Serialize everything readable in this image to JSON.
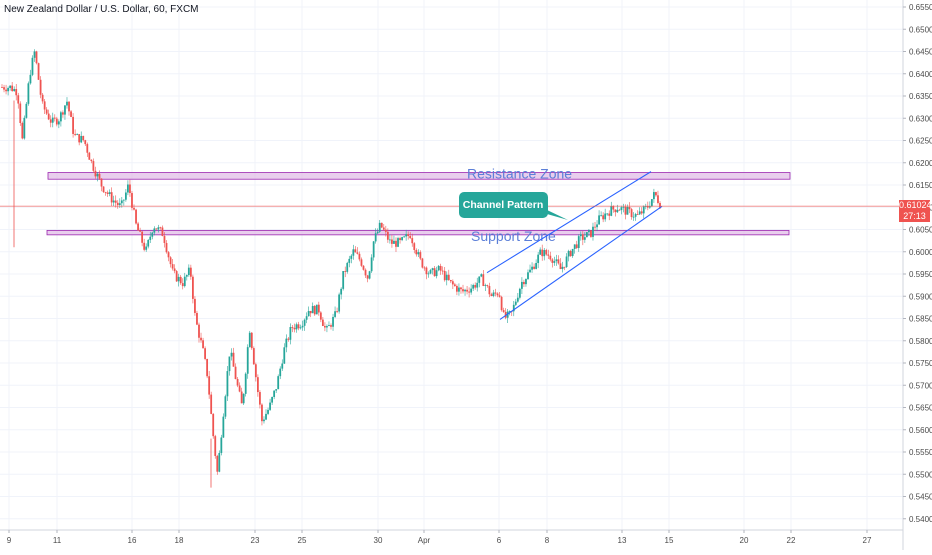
{
  "header": {
    "symbol_title": "New Zealand Dollar / U.S. Dollar, 60, FXCM"
  },
  "colors": {
    "up": "#26a69a",
    "down": "#ef5350",
    "zone_fill": "#e1bee7",
    "zone_border": "#9c27b0",
    "trend": "#2962ff",
    "callout": "#26a69a",
    "price_line": "#ef5350",
    "grid": "#f0f3fa",
    "axis_text": "#4a4a4a"
  },
  "chart_data": {
    "type": "candlestick",
    "series_name": "NZD/USD 60",
    "y_axis": {
      "range": [
        0.5375,
        0.656
      ],
      "ticks": [
        "0.65500",
        "0.65000",
        "0.64500",
        "0.64000",
        "0.63500",
        "0.63000",
        "0.62500",
        "0.62000",
        "0.61500",
        "0.61000",
        "0.60500",
        "0.60000",
        "0.59500",
        "0.59000",
        "0.58500",
        "0.58000",
        "0.57500",
        "0.57000",
        "0.56500",
        "0.56000",
        "0.55500",
        "0.55000",
        "0.54500",
        "0.54000"
      ]
    },
    "x_axis": {
      "ticks": [
        "9",
        "11",
        "16",
        "18",
        "23",
        "25",
        "30",
        "Apr",
        "6",
        "8",
        "13",
        "15",
        "20",
        "22",
        "27"
      ]
    },
    "last_price": "0.61024",
    "countdown": "27:13",
    "price_path": [
      [
        0.0,
        0.637
      ],
      [
        0.6,
        0.636
      ],
      [
        1.0,
        0.625
      ],
      [
        1.6,
        0.64
      ],
      [
        2.0,
        0.645
      ],
      [
        2.6,
        0.633
      ],
      [
        3.4,
        0.629
      ],
      [
        4.0,
        0.63
      ],
      [
        4.6,
        0.634
      ],
      [
        5.2,
        0.626
      ],
      [
        6.0,
        0.625
      ],
      [
        6.6,
        0.62
      ],
      [
        7.4,
        0.615
      ],
      [
        8.2,
        0.612
      ],
      [
        9.0,
        0.61
      ],
      [
        9.6,
        0.615
      ],
      [
        10.2,
        0.606
      ],
      [
        11.0,
        0.6
      ],
      [
        11.6,
        0.606
      ],
      [
        12.4,
        0.604
      ],
      [
        13.2,
        0.595
      ],
      [
        14.0,
        0.593
      ],
      [
        14.6,
        0.596
      ],
      [
        15.0,
        0.585
      ],
      [
        15.6,
        0.578
      ],
      [
        16.0,
        0.572
      ],
      [
        16.4,
        0.56
      ],
      [
        16.8,
        0.55
      ],
      [
        17.2,
        0.562
      ],
      [
        17.8,
        0.578
      ],
      [
        18.4,
        0.57
      ],
      [
        18.8,
        0.565
      ],
      [
        19.4,
        0.583
      ],
      [
        20.0,
        0.57
      ],
      [
        20.4,
        0.562
      ],
      [
        21.0,
        0.565
      ],
      [
        21.6,
        0.57
      ],
      [
        22.2,
        0.578
      ],
      [
        22.8,
        0.583
      ],
      [
        23.6,
        0.584
      ],
      [
        24.2,
        0.587
      ],
      [
        25.0,
        0.587
      ],
      [
        25.6,
        0.582
      ],
      [
        26.4,
        0.586
      ],
      [
        27.0,
        0.595
      ],
      [
        27.8,
        0.6
      ],
      [
        28.4,
        0.598
      ],
      [
        29.0,
        0.594
      ],
      [
        29.4,
        0.602
      ],
      [
        30.0,
        0.606
      ],
      [
        30.8,
        0.602
      ],
      [
        31.6,
        0.602
      ],
      [
        32.4,
        0.604
      ],
      [
        33.2,
        0.598
      ],
      [
        34.0,
        0.595
      ],
      [
        34.8,
        0.596
      ],
      [
        35.6,
        0.593
      ],
      [
        36.6,
        0.591
      ],
      [
        37.4,
        0.592
      ],
      [
        38.2,
        0.594
      ],
      [
        39.0,
        0.59
      ],
      [
        39.6,
        0.591
      ],
      [
        40.0,
        0.585
      ],
      [
        40.6,
        0.586
      ],
      [
        41.4,
        0.593
      ],
      [
        42.2,
        0.596
      ],
      [
        43.0,
        0.6
      ],
      [
        43.8,
        0.599
      ],
      [
        44.6,
        0.596
      ],
      [
        45.4,
        0.6
      ],
      [
        46.2,
        0.603
      ],
      [
        47.0,
        0.604
      ],
      [
        47.6,
        0.607
      ],
      [
        48.4,
        0.609
      ],
      [
        49.2,
        0.61
      ],
      [
        50.0,
        0.609
      ],
      [
        50.8,
        0.608
      ],
      [
        51.6,
        0.61
      ],
      [
        52.2,
        0.613
      ],
      [
        52.8,
        0.61
      ]
    ],
    "annotations": [
      {
        "label": "Resistance Zone",
        "kind": "zone",
        "price_from": 0.6163,
        "price_to": 0.6178
      },
      {
        "label": "Support Zone",
        "kind": "zone",
        "price_from": 0.6038,
        "price_to": 0.6048
      },
      {
        "label": "Channel Pattern",
        "kind": "callout"
      }
    ],
    "channel": {
      "upper": [
        [
          0.5953,
          0.618
        ]
      ],
      "lower": [
        [
          0.5848,
          0.6102
        ]
      ]
    }
  }
}
